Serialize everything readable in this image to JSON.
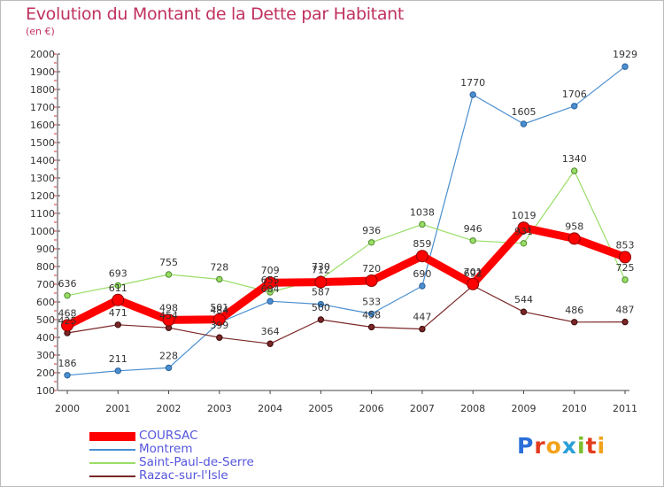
{
  "title": "Evolution du Montant de la Dette par Habitant",
  "subtitle": "(en €)",
  "logo_text": "Proxiti",
  "chart_data": {
    "type": "line",
    "title": "Evolution du Montant de la Dette par Habitant",
    "ylabel": "(en €)",
    "xlabel": "",
    "ylim": [
      100,
      2000
    ],
    "grid": false,
    "legend_position": "bottom-left",
    "x": [
      "2000",
      "2001",
      "2002",
      "2003",
      "2004",
      "2005",
      "2006",
      "2007",
      "2008",
      "2009",
      "2010",
      "2011"
    ],
    "y_ticks": [
      100,
      200,
      300,
      400,
      500,
      600,
      700,
      800,
      900,
      1000,
      1100,
      1200,
      1300,
      1400,
      1500,
      1600,
      1700,
      1800,
      1900,
      2000
    ],
    "series": [
      {
        "name": "COURSAC",
        "color": "#ff0000",
        "values": [
          468,
          611,
          498,
          501,
          709,
          712,
          720,
          859,
          701,
          1019,
          958,
          853
        ]
      },
      {
        "name": "Montrem",
        "color": "#4a8fd0",
        "values": [
          186,
          211,
          228,
          484,
          604,
          587,
          533,
          690,
          1770,
          1605,
          1706,
          1929
        ]
      },
      {
        "name": "Saint-Paul-de-Serre",
        "color": "#99dd66",
        "values": [
          636,
          693,
          755,
          728,
          655,
          730,
          936,
          1038,
          946,
          931,
          1340,
          725
        ]
      },
      {
        "name": "Razac-sur-l'Isle",
        "color": "#7a2626",
        "values": [
          425,
          471,
          454,
          399,
          364,
          500,
          458,
          447,
          692,
          544,
          486,
          487
        ]
      }
    ]
  }
}
